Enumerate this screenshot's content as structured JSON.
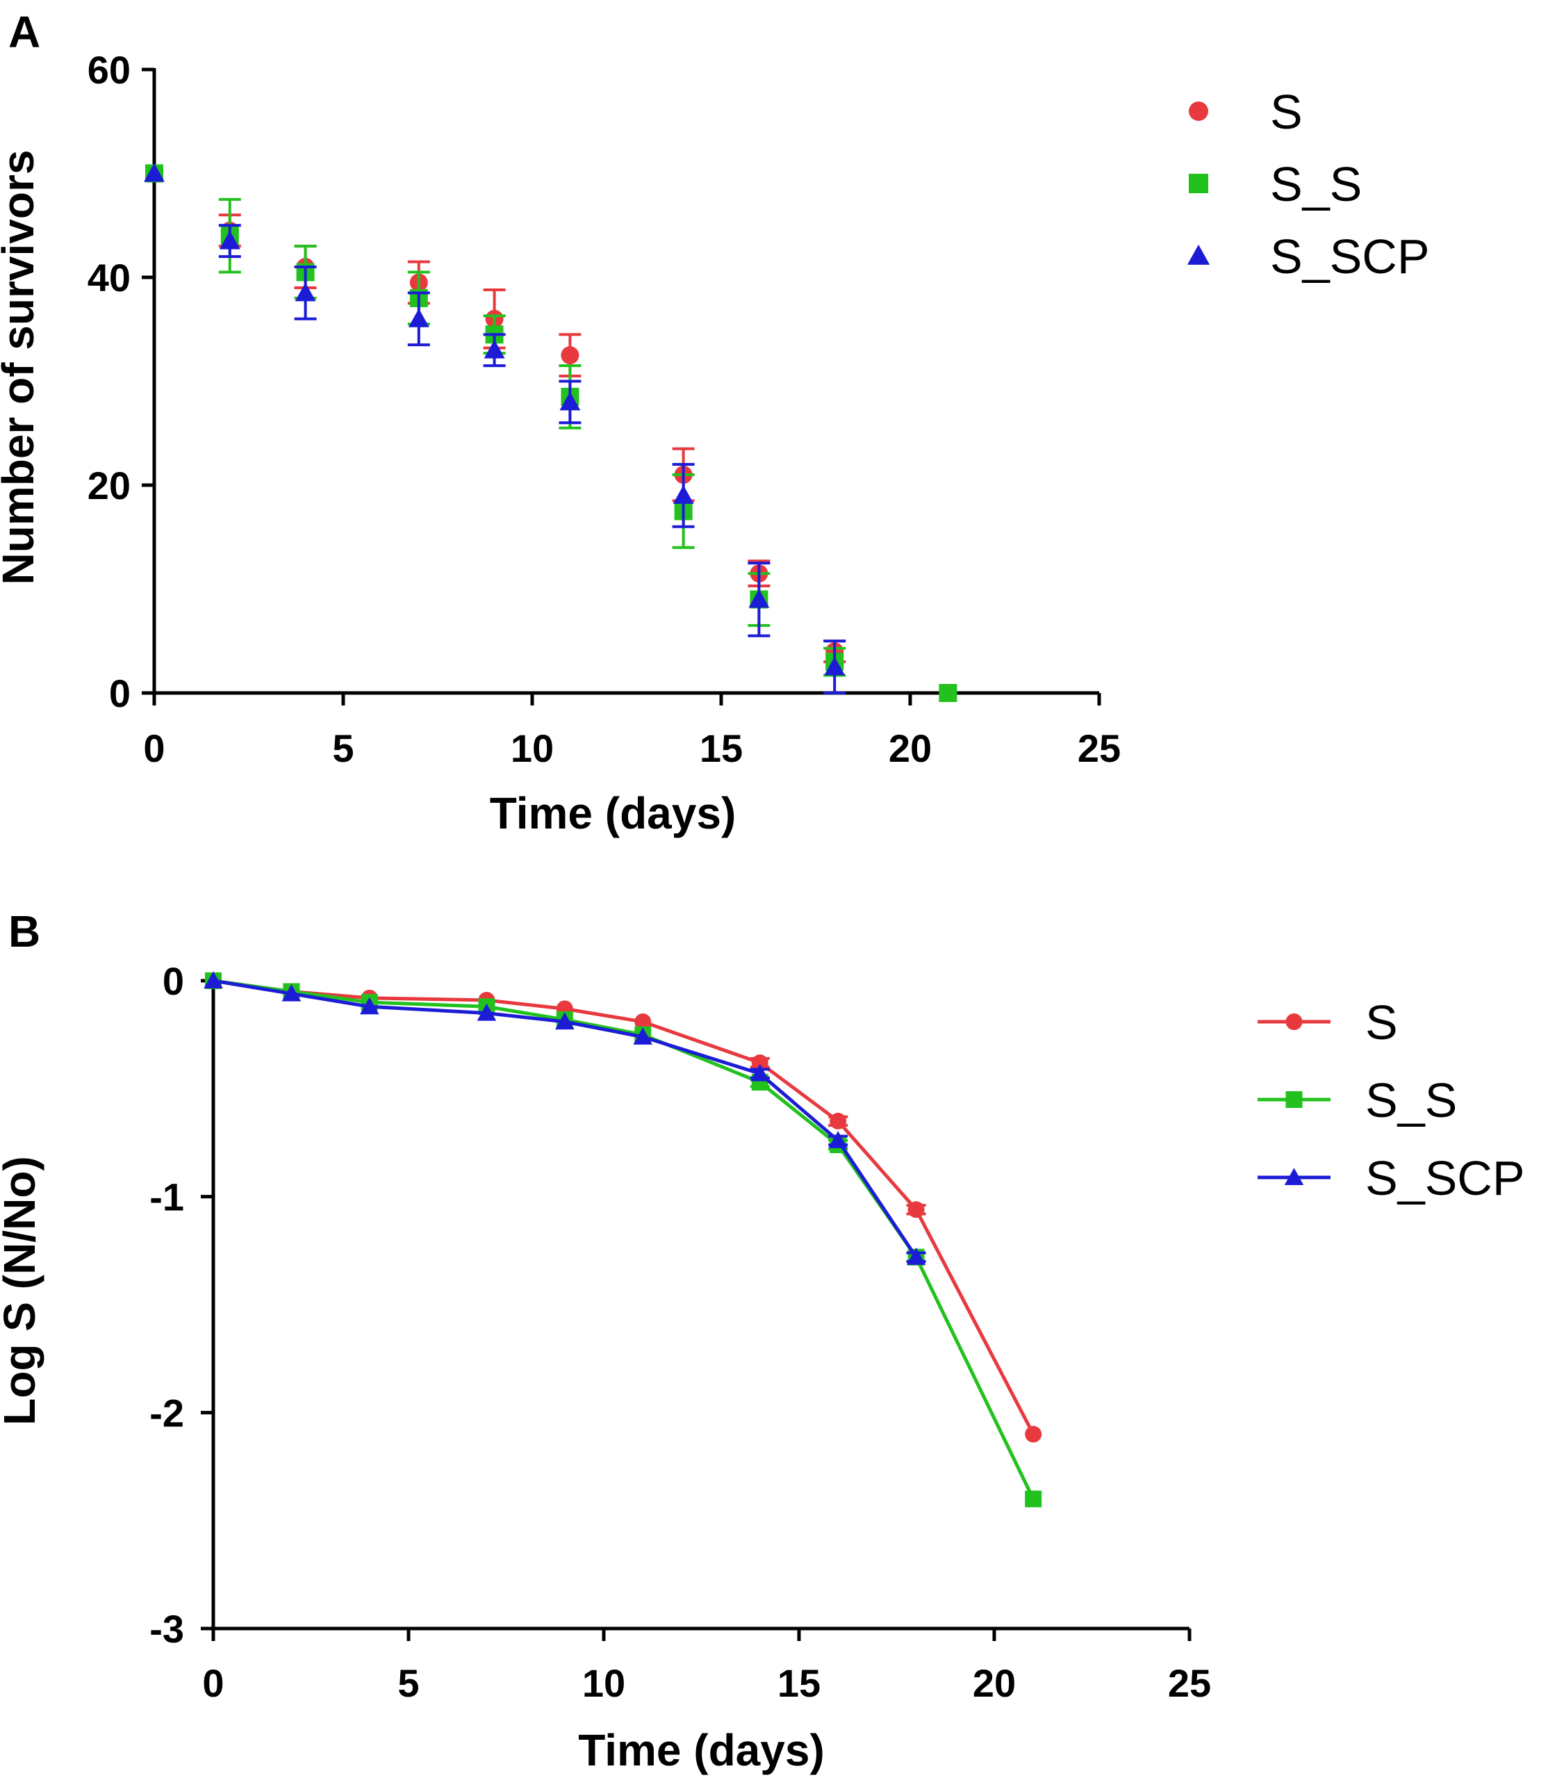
{
  "colors": {
    "S": "#e8393f",
    "S_S": "#22c11e",
    "S_SCP": "#1c1cd6"
  },
  "chart_data": [
    {
      "panel": "A",
      "type": "scatter",
      "title": "",
      "xlabel": "Time (days)",
      "ylabel": "Number of survivors",
      "xlim": [
        0,
        25
      ],
      "ylim": [
        0,
        60
      ],
      "xticks": [
        0,
        5,
        10,
        15,
        20,
        25
      ],
      "yticks": [
        0,
        20,
        40,
        60
      ],
      "legend_position": "top-right",
      "series": [
        {
          "name": "S",
          "marker": "circle",
          "color": "#e8393f",
          "x": [
            0,
            2,
            4,
            7,
            9,
            11,
            14,
            16,
            18,
            21
          ],
          "y": [
            50,
            44.5,
            41,
            39.5,
            36,
            32.5,
            21,
            11.5,
            4,
            0
          ],
          "err": [
            0,
            1.5,
            2,
            2,
            2.8,
            2,
            2.5,
            1.2,
            1,
            0
          ]
        },
        {
          "name": "S_S",
          "marker": "square",
          "color": "#22c11e",
          "x": [
            0,
            2,
            4,
            7,
            9,
            11,
            14,
            16,
            18,
            21
          ],
          "y": [
            50,
            44,
            40.5,
            38,
            34.5,
            28.5,
            17.5,
            9,
            3,
            0
          ],
          "err": [
            0,
            3.5,
            2.5,
            2.5,
            1.8,
            3,
            3.5,
            2.5,
            1.3,
            0
          ]
        },
        {
          "name": "S_SCP",
          "marker": "triangle",
          "color": "#1c1cd6",
          "x": [
            0,
            2,
            4,
            7,
            9,
            11,
            14,
            16,
            18
          ],
          "y": [
            50,
            43.5,
            38.5,
            36,
            33,
            28,
            19,
            9,
            2.5
          ],
          "err": [
            0,
            1.5,
            2.5,
            2.5,
            1.5,
            2,
            3,
            3.5,
            2.5
          ]
        }
      ]
    },
    {
      "panel": "B",
      "type": "line",
      "title": "",
      "xlabel": "Time (days)",
      "ylabel": "Log S (N/No)",
      "xlim": [
        0,
        25
      ],
      "ylim": [
        -3,
        0
      ],
      "xticks": [
        0,
        5,
        10,
        15,
        20,
        25
      ],
      "yticks": [
        0,
        -1,
        -2,
        -3
      ],
      "legend_position": "right",
      "series": [
        {
          "name": "S",
          "marker": "circle",
          "color": "#e8393f",
          "x": [
            0,
            2,
            4,
            7,
            9,
            11,
            14,
            16,
            18,
            21
          ],
          "y": [
            0,
            -0.05,
            -0.08,
            -0.09,
            -0.13,
            -0.19,
            -0.38,
            -0.65,
            -1.06,
            -2.1
          ],
          "err": [
            0,
            0,
            0,
            0,
            0,
            0,
            0.02,
            0.02,
            0.02,
            0
          ]
        },
        {
          "name": "S_S",
          "marker": "square",
          "color": "#22c11e",
          "x": [
            0,
            2,
            4,
            7,
            9,
            11,
            14,
            16,
            18,
            21
          ],
          "y": [
            0,
            -0.05,
            -0.1,
            -0.12,
            -0.18,
            -0.25,
            -0.47,
            -0.76,
            -1.28,
            -2.4
          ],
          "err": [
            0,
            0,
            0,
            0,
            0,
            0,
            0.02,
            0.02,
            0.02,
            0
          ]
        },
        {
          "name": "S_SCP",
          "marker": "triangle",
          "color": "#1c1cd6",
          "x": [
            0,
            2,
            4,
            7,
            9,
            11,
            14,
            16,
            18
          ],
          "y": [
            0,
            -0.06,
            -0.12,
            -0.15,
            -0.19,
            -0.26,
            -0.43,
            -0.74,
            -1.28
          ],
          "err": [
            0,
            0,
            0,
            0,
            0,
            0,
            0.02,
            0.02,
            0.02
          ]
        }
      ]
    }
  ]
}
